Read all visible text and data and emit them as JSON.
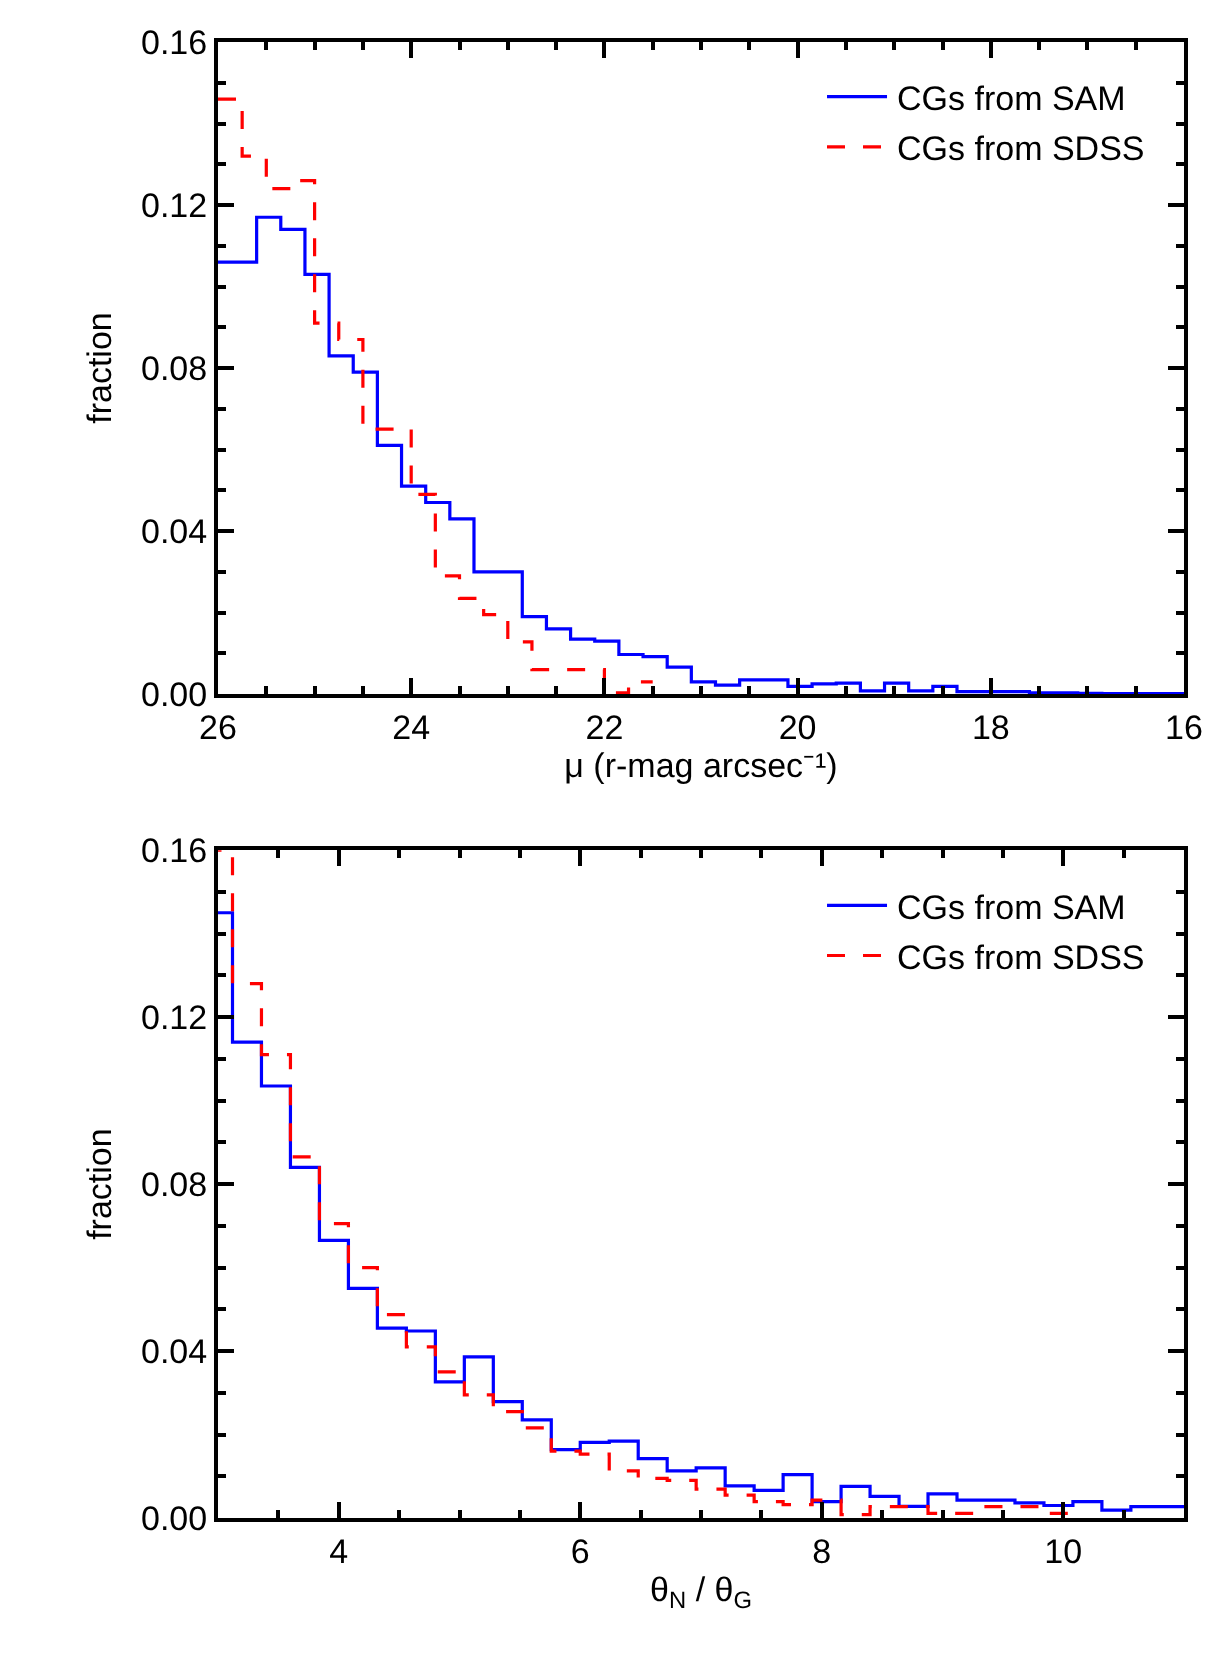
{
  "chart_data": [
    {
      "type": "histogram",
      "xlabel": "μ (r-mag arcsec⁻¹)",
      "ylabel": "fraction",
      "xlim": [
        26,
        16
      ],
      "xticks": [
        26,
        24,
        22,
        20,
        18,
        16
      ],
      "ylim": [
        0,
        0.16
      ],
      "yticks": [
        {
          "value": 0,
          "label": "0.00"
        },
        {
          "value": 0.04,
          "label": "0.04"
        },
        {
          "value": 0.08,
          "label": "0.08"
        },
        {
          "value": 0.12,
          "label": "0.12"
        },
        {
          "value": 0.16,
          "label": "0.16"
        }
      ],
      "legend": "top right",
      "bins": [
        26.1,
        25.85,
        25.6,
        25.35,
        25.1,
        24.85,
        24.6,
        24.35,
        24.1,
        23.85,
        23.6,
        23.35,
        23.1,
        22.85,
        22.6,
        22.35,
        22.1,
        21.85,
        21.6,
        21.35,
        21.1,
        20.85,
        20.6,
        20.35,
        20.1,
        19.85,
        19.6,
        19.35,
        19.1,
        18.85,
        18.6,
        18.35,
        18.1,
        17.85,
        17.6,
        17.35,
        17.1,
        16.85,
        16.6,
        16.35,
        16.1,
        15.85
      ],
      "series": [
        {
          "name": "CGs from SAM",
          "color": "#0000ff",
          "line_style": "solid",
          "values": [
            0.106,
            0.106,
            0.117,
            0.114,
            0.103,
            0.083,
            0.079,
            0.061,
            0.051,
            0.047,
            0.043,
            0.03,
            0.03,
            0.019,
            0.016,
            0.0135,
            0.013,
            0.0097,
            0.0092,
            0.0066,
            0.003,
            0.0022,
            0.0035,
            0.0035,
            0.0019,
            0.0025,
            0.0027,
            0.0008,
            0.0027,
            0.0008,
            0.0019,
            0.0006,
            0.0006,
            0.0006,
            0.0003,
            0.0003,
            0.0002,
            0.0001,
            0.0001,
            0.0001,
            0.0001
          ]
        },
        {
          "name": "CGs from SDSS",
          "color": "#ff0000",
          "line_style": "dashed",
          "bins": [
            26.0,
            25.75,
            25.5,
            25.25,
            25.0,
            24.75,
            24.5,
            24.25,
            24.0,
            23.75,
            23.5,
            23.25,
            23.0,
            22.75,
            22.5,
            22.25,
            22.0,
            21.75,
            21.5
          ],
          "values": [
            0.146,
            0.132,
            0.124,
            0.126,
            0.091,
            0.087,
            0.065,
            0.065,
            0.049,
            0.029,
            0.0235,
            0.0195,
            0.0128,
            0.006,
            0.006,
            0.006,
            0.0003,
            0.003
          ]
        }
      ]
    },
    {
      "type": "histogram",
      "xlabel": "θ$_{N}$ / θ$_{G}$",
      "ylabel": "fraction",
      "xlim": [
        3,
        11
      ],
      "xticks": [
        4,
        6,
        8,
        10
      ],
      "ylim": [
        0,
        0.16
      ],
      "yticks": [
        {
          "value": 0,
          "label": "0.00"
        },
        {
          "value": 0.04,
          "label": "0.04"
        },
        {
          "value": 0.08,
          "label": "0.08"
        },
        {
          "value": 0.12,
          "label": "0.12"
        },
        {
          "value": 0.16,
          "label": "0.16"
        }
      ],
      "legend": "top right",
      "bins": [
        2.88,
        3.12,
        3.36,
        3.6,
        3.84,
        4.08,
        4.32,
        4.56,
        4.8,
        5.04,
        5.28,
        5.52,
        5.76,
        6.0,
        6.24,
        6.48,
        6.72,
        6.96,
        7.2,
        7.44,
        7.68,
        7.92,
        8.16,
        8.4,
        8.64,
        8.88,
        9.12,
        9.36,
        9.6,
        9.84,
        10.08,
        10.32,
        10.56,
        10.8,
        11.04
      ],
      "series": [
        {
          "name": "CGs from SAM",
          "color": "#0000ff",
          "line_style": "solid",
          "values": [
            0.145,
            0.114,
            0.1035,
            0.084,
            0.0665,
            0.055,
            0.0455,
            0.0448,
            0.0326,
            0.0386,
            0.0279,
            0.0235,
            0.0164,
            0.0181,
            0.0184,
            0.0142,
            0.0113,
            0.012,
            0.0077,
            0.0066,
            0.0104,
            0.0039,
            0.0076,
            0.0052,
            0.0028,
            0.0058,
            0.0043,
            0.0043,
            0.0036,
            0.003,
            0.0039,
            0.0019,
            0.0027,
            0.0027
          ]
        },
        {
          "name": "CGs from SDSS",
          "color": "#ff0000",
          "line_style": "dashed",
          "bins": [
            2.88,
            3.12,
            3.36,
            3.6,
            3.84,
            4.08,
            4.32,
            4.56,
            4.8,
            5.04,
            5.28,
            5.52,
            5.76,
            6.0,
            6.24,
            6.48,
            6.72,
            6.96,
            7.2,
            7.44,
            7.68,
            7.92,
            8.16,
            8.4,
            8.64,
            8.88,
            9.12,
            9.36,
            9.6,
            9.84,
            10.08
          ],
          "values": [
            0.16,
            0.128,
            0.111,
            0.0865,
            0.0705,
            0.06,
            0.0487,
            0.041,
            0.035,
            0.0295,
            0.0255,
            0.0216,
            0.016,
            0.0153,
            0.0113,
            0.0095,
            0.009,
            0.0069,
            0.0055,
            0.0039,
            0.0032,
            0.0043,
            0.0008,
            0.0027,
            0.0027,
            0.0011,
            0.0011,
            0.0027,
            0.0027,
            0.0011
          ]
        }
      ]
    }
  ]
}
